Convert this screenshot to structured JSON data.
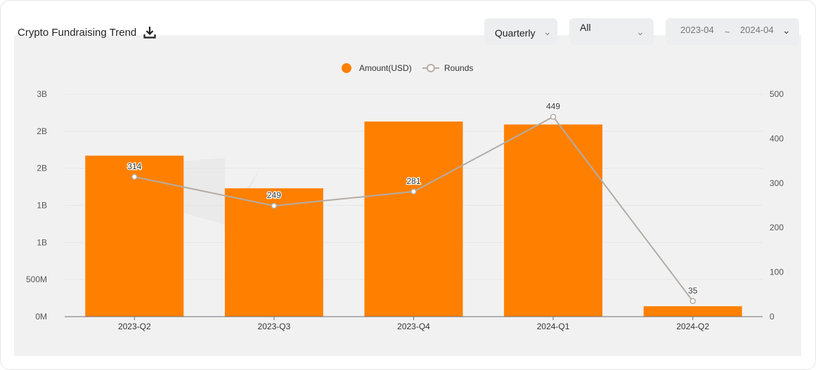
{
  "header": {
    "title": "Crypto Fundraising Trend",
    "period_select": "Quarterly",
    "category_select": "All",
    "date_start": "2023-04",
    "date_separator": "~",
    "date_end": "2024-04"
  },
  "chart_data": {
    "type": "bar",
    "categories": [
      "2023-Q2",
      "2023-Q3",
      "2023-Q4",
      "2024-Q1",
      "2024-Q2"
    ],
    "series": [
      {
        "name": "Amount(USD)",
        "type": "bar",
        "axis": "left",
        "color": "#ff8000",
        "values": [
          2170000000,
          1730000000,
          2630000000,
          2590000000,
          140000000
        ]
      },
      {
        "name": "Rounds",
        "type": "line",
        "axis": "right",
        "color": "#b3aca6",
        "values": [
          314,
          249,
          281,
          449,
          35
        ]
      }
    ],
    "left_axis": {
      "ylim": [
        0,
        3000000000
      ],
      "tick_labels": [
        "0M",
        "500M",
        "1B",
        "1B",
        "2B",
        "2B",
        "3B"
      ]
    },
    "right_axis": {
      "ylim": [
        0,
        500
      ],
      "tick_labels": [
        "0",
        "100",
        "200",
        "300",
        "400",
        "500"
      ]
    },
    "legend_placement": "top-center",
    "grid": true
  }
}
